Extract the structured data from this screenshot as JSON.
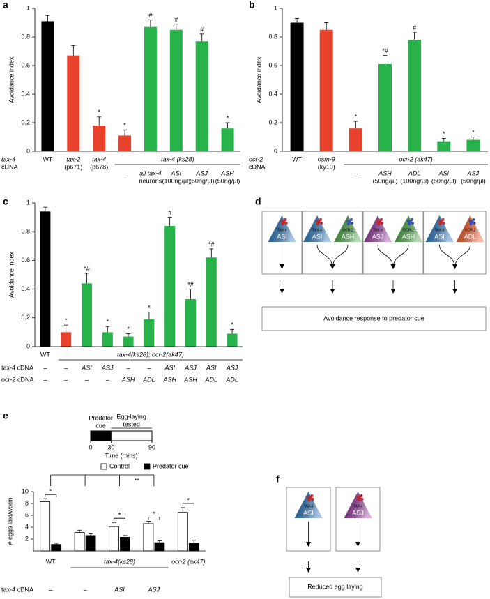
{
  "chart_data": [
    {
      "type": "bar",
      "panel": "a",
      "ylabel": "Avoidance index",
      "ylim": [
        0,
        1
      ],
      "yticks": [
        0,
        0.2,
        0.4,
        0.6,
        0.8,
        1
      ],
      "categories": [
        [
          "WT"
        ],
        [
          "tax-2",
          "(p671)"
        ],
        [
          "tax-4",
          "(p678)"
        ],
        [
          "–"
        ],
        [
          "all tax-4",
          "neurons"
        ],
        [
          "ASI",
          "(100ng/µl)"
        ],
        [
          "ASJ",
          "(50ng/µl)"
        ],
        [
          "ASH",
          "(50ng/µl)"
        ]
      ],
      "values": [
        0.91,
        0.67,
        0.18,
        0.11,
        0.87,
        0.85,
        0.77,
        0.16
      ],
      "errors": [
        0.04,
        0.07,
        0.06,
        0.04,
        0.05,
        0.04,
        0.05,
        0.04
      ],
      "colors": [
        "#000000",
        "#e8412c",
        "#e8412c",
        "#e8412c",
        "#27b34a",
        "#27b34a",
        "#27b34a",
        "#27b34a"
      ],
      "annotations": [
        null,
        null,
        "*",
        "*",
        "#",
        "#",
        "#",
        "*"
      ],
      "row_label": [
        "tax-4",
        "cDNA"
      ],
      "group_label": "tax-4 (ks28)"
    },
    {
      "type": "bar",
      "panel": "b",
      "ylabel": "Avoidance index",
      "ylim": [
        0,
        1
      ],
      "yticks": [
        0,
        0.2,
        0.4,
        0.6,
        0.8,
        1
      ],
      "categories": [
        [
          "WT"
        ],
        [
          "osm-9",
          "(ky10)"
        ],
        [
          "–"
        ],
        [
          "ASH",
          "(50ng/µl)"
        ],
        [
          "ADL",
          "(100ng/µl)"
        ],
        [
          "ASI",
          "(50ng/µl)"
        ],
        [
          "ASJ",
          "(50ng/µl)"
        ]
      ],
      "values": [
        0.9,
        0.85,
        0.16,
        0.61,
        0.78,
        0.07,
        0.08
      ],
      "errors": [
        0.03,
        0.05,
        0.05,
        0.06,
        0.05,
        0.02,
        0.02
      ],
      "colors": [
        "#000000",
        "#e8412c",
        "#e8412c",
        "#27b34a",
        "#27b34a",
        "#27b34a",
        "#27b34a"
      ],
      "annotations": [
        null,
        null,
        "*",
        "*#",
        "#",
        "*",
        "*"
      ],
      "row_label": [
        "ocr-2",
        "cDNA"
      ],
      "group_label": "ocr-2 (ak47)"
    },
    {
      "type": "bar",
      "panel": "c",
      "ylabel": "Avoidance index",
      "ylim": [
        0,
        1
      ],
      "yticks": [
        0,
        0.2,
        0.4,
        0.6,
        0.8,
        1
      ],
      "categories": [
        [
          "WT"
        ],
        null,
        null,
        null,
        null,
        null,
        null,
        null,
        null,
        null
      ],
      "values": [
        0.94,
        0.1,
        0.44,
        0.1,
        0.07,
        0.19,
        0.84,
        0.33,
        0.62,
        0.09
      ],
      "errors": [
        0.03,
        0.05,
        0.07,
        0.04,
        0.02,
        0.05,
        0.06,
        0.07,
        0.06,
        0.03
      ],
      "colors": [
        "#000000",
        "#e8412c",
        "#27b34a",
        "#27b34a",
        "#27b34a",
        "#27b34a",
        "#27b34a",
        "#27b34a",
        "#27b34a",
        "#27b34a"
      ],
      "annotations": [
        null,
        "*",
        "*#",
        "*",
        "*",
        "*",
        "#",
        "*#",
        "*#",
        "*"
      ],
      "group_label": "tax-4(ks28); ocr-2(ak47)",
      "rows": [
        {
          "label": "tax-4 cDNA",
          "values": [
            "–",
            "–",
            "ASI",
            "ASJ",
            "–",
            "–",
            "ASI",
            "ASJ",
            "ASI",
            "ASJ"
          ]
        },
        {
          "label": "ocr-2 cDNA",
          "values": [
            "–",
            "–",
            "–",
            "–",
            "ASH",
            "ADL",
            "ASH",
            "ASH",
            "ADL",
            "ADL"
          ]
        }
      ]
    },
    {
      "type": "grouped_bar",
      "panel": "e",
      "ylabel": "# eggs laid/worm",
      "ylim": [
        0,
        10
      ],
      "yticks": [
        2,
        4,
        6,
        8,
        10
      ],
      "categories": [
        "WT",
        null,
        null,
        null,
        "ocr-2 (ak47)"
      ],
      "group_label": "tax-4(ks28)",
      "rows": [
        {
          "label": "tax-4 cDNA",
          "values": [
            "–",
            "–",
            "ASI",
            "ASJ",
            null
          ]
        }
      ],
      "series": [
        {
          "name": "Control",
          "color": "#ffffff",
          "values": [
            8.3,
            3.1,
            4.1,
            4.6,
            6.5
          ],
          "errors": [
            0.5,
            0.4,
            0.7,
            0.4,
            0.8
          ]
        },
        {
          "name": "Predator cue",
          "color": "#000000",
          "values": [
            1.1,
            2.6,
            2.3,
            1.4,
            1.3
          ],
          "errors": [
            0.2,
            0.3,
            0.3,
            0.3,
            0.5
          ]
        }
      ],
      "pair_annotations": [
        "*",
        null,
        "*",
        "*",
        "*"
      ],
      "comparison_label": "**",
      "timeline": {
        "xlim": [
          0,
          90
        ],
        "xticks": [
          0,
          30,
          90
        ],
        "xlabel": "Time (mins)",
        "phases": [
          {
            "label": [
              "Predator",
              "cue"
            ],
            "start": 0,
            "end": 30,
            "color": "#000000"
          },
          {
            "label": [
              "Egg-laying",
              "tested"
            ],
            "start": 30,
            "end": 90,
            "color": "#ffffff"
          }
        ]
      }
    }
  ],
  "diagrams": [
    {
      "panel": "d",
      "output": "Avoidance response to predator cue",
      "columns": [
        [
          {
            "name": "ASI",
            "receptor": "TAX-4",
            "color": "#1f6aae",
            "receptor_color": "#c0272d"
          }
        ],
        [
          {
            "name": "ASI",
            "receptor": "TAX-4",
            "color": "#1f6aae",
            "receptor_color": "#c0272d"
          },
          {
            "name": "ASH",
            "receptor": "OCR-2",
            "color": "#3f9a3c",
            "receptor_color": "#3a4fb0"
          }
        ],
        [
          {
            "name": "ASJ",
            "receptor": "TAX-4",
            "color": "#8a2c93",
            "receptor_color": "#c0272d"
          },
          {
            "name": "ASH",
            "receptor": "OCR-2",
            "color": "#3f9a3c",
            "receptor_color": "#3a4fb0"
          }
        ],
        [
          {
            "name": "ASI",
            "receptor": "TAX-4",
            "color": "#1f6aae",
            "receptor_color": "#c0272d"
          },
          {
            "name": "ADL",
            "receptor": "OCR-2",
            "color": "#e8501f",
            "receptor_color": "#3a4fb0"
          }
        ]
      ]
    },
    {
      "panel": "f",
      "output": "Reduced egg laying",
      "columns": [
        [
          {
            "name": "ASI",
            "receptor": "TAX-4",
            "color": "#1f6aae",
            "receptor_color": "#c0272d"
          }
        ],
        [
          {
            "name": "ASJ",
            "receptor": "TAX-4",
            "color": "#8a2c93",
            "receptor_color": "#c0272d"
          }
        ]
      ]
    }
  ]
}
